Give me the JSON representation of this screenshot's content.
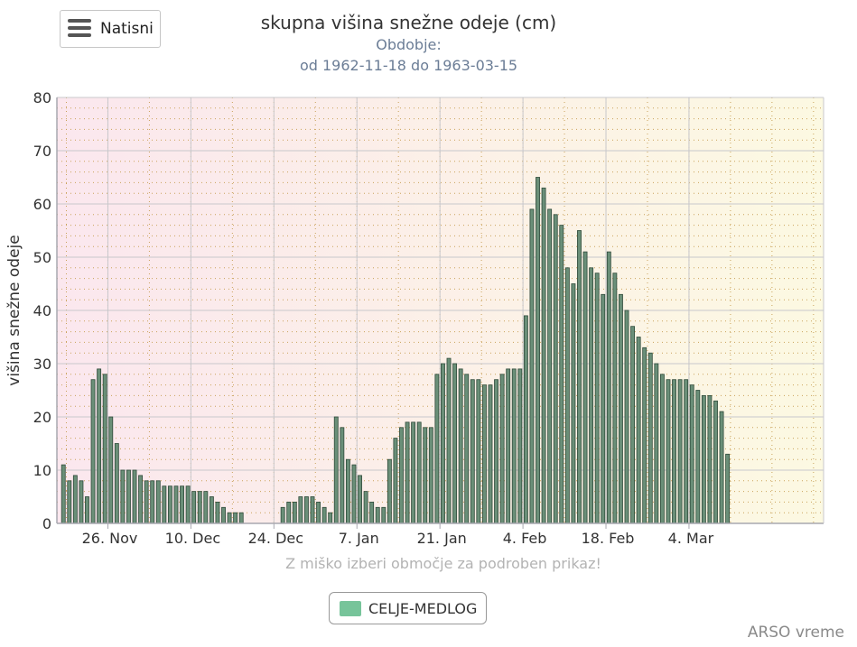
{
  "menu": {
    "print_label": "Natisni",
    "icon": "hamburger-icon"
  },
  "chart_data": {
    "type": "bar",
    "title": "skupna višina snežne odeje (cm)",
    "subtitle_line1": "Obdobje:",
    "subtitle_line2": "od 1962-11-18 do 1963-03-15",
    "ylabel": "višina snežne odeje",
    "ylim": [
      0,
      80
    ],
    "yticks": [
      0,
      10,
      20,
      30,
      40,
      50,
      60,
      70,
      80
    ],
    "x_start": "1962-11-18",
    "x_end": "1963-03-15",
    "xtick_labels": [
      "26. Nov",
      "10. Dec",
      "24. Dec",
      "7. Jan",
      "21. Jan",
      "4. Feb",
      "18. Feb",
      "4. Mar"
    ],
    "series": [
      {
        "name": "CELJE-MEDLOG",
        "color": "#77c49a",
        "values": [
          11,
          8,
          9,
          8,
          5,
          27,
          29,
          28,
          20,
          15,
          10,
          10,
          10,
          9,
          8,
          8,
          8,
          7,
          7,
          7,
          7,
          7,
          6,
          6,
          6,
          5,
          4,
          3,
          2,
          2,
          2,
          null,
          null,
          null,
          null,
          null,
          null,
          3,
          4,
          4,
          5,
          5,
          5,
          4,
          3,
          2,
          20,
          18,
          12,
          11,
          9,
          6,
          4,
          3,
          3,
          12,
          16,
          18,
          19,
          19,
          19,
          18,
          18,
          28,
          30,
          31,
          30,
          29,
          28,
          27,
          27,
          26,
          26,
          27,
          28,
          29,
          29,
          29,
          39,
          59,
          65,
          63,
          59,
          58,
          56,
          48,
          45,
          55,
          51,
          48,
          47,
          43,
          51,
          47,
          43,
          40,
          37,
          35,
          33,
          32,
          30,
          28,
          27,
          27,
          27,
          27,
          26,
          25,
          24,
          24,
          23,
          21,
          13
        ]
      }
    ],
    "grid": true,
    "legend_position": "bottom-center"
  },
  "hint_text": "Z miško izberi območje za podroben prikaz!",
  "legend_label": "CELJE-MEDLOG",
  "credits": "ARSO vreme",
  "colors": {
    "bar_fill": "#6a8f78",
    "bar_stroke": "#2f4a3a",
    "legend_swatch": "#77c49a",
    "grid_major": "#c8c8cc",
    "grid_minor_dots": "#c9a25a"
  }
}
